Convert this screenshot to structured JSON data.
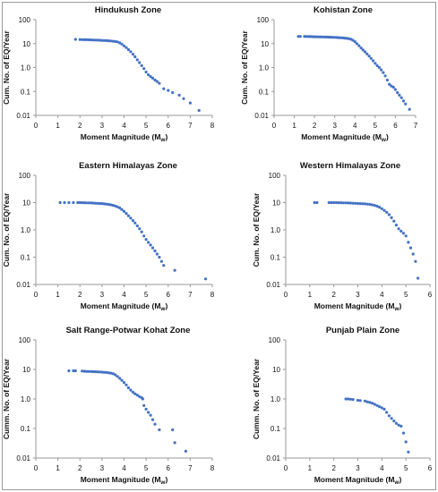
{
  "chart_data": [
    {
      "type": "scatter",
      "title": "Hindukush Zone",
      "xlabel": "Moment Magnitude (M",
      "xlabel_sub": "w",
      "xlabel_end": ")",
      "ylabel": "Cum. No. of EQ/Year",
      "xlim": [
        0,
        8
      ],
      "x_ticks": [
        "0",
        "1",
        "2",
        "3",
        "4",
        "5",
        "6",
        "7",
        "8"
      ],
      "y_log": true,
      "ylim": [
        0.01,
        100
      ],
      "y_ticks": [
        "0.01",
        "0.1",
        "1.0",
        "10",
        "100"
      ],
      "points": [
        [
          1.8,
          15
        ],
        [
          2.0,
          14.8
        ],
        [
          2.1,
          14.7
        ],
        [
          2.2,
          14.6
        ],
        [
          2.3,
          14.5
        ],
        [
          2.4,
          14.4
        ],
        [
          2.5,
          14.3
        ],
        [
          2.6,
          14.2
        ],
        [
          2.7,
          14
        ],
        [
          2.8,
          13.9
        ],
        [
          2.9,
          13.8
        ],
        [
          3.0,
          13.6
        ],
        [
          3.1,
          13.5
        ],
        [
          3.2,
          13.3
        ],
        [
          3.3,
          13.1
        ],
        [
          3.4,
          12.9
        ],
        [
          3.5,
          12.6
        ],
        [
          3.6,
          12.2
        ],
        [
          3.7,
          11.8
        ],
        [
          3.8,
          10.8
        ],
        [
          3.9,
          9.5
        ],
        [
          4.0,
          8.0
        ],
        [
          4.1,
          6.8
        ],
        [
          4.2,
          5.6
        ],
        [
          4.3,
          4.6
        ],
        [
          4.4,
          3.6
        ],
        [
          4.5,
          2.8
        ],
        [
          4.6,
          2.1
        ],
        [
          4.7,
          1.6
        ],
        [
          4.8,
          1.2
        ],
        [
          4.9,
          0.9
        ],
        [
          5.0,
          0.65
        ],
        [
          5.1,
          0.5
        ],
        [
          5.2,
          0.42
        ],
        [
          5.3,
          0.36
        ],
        [
          5.4,
          0.3
        ],
        [
          5.5,
          0.26
        ],
        [
          5.6,
          0.22
        ],
        [
          5.8,
          0.13
        ],
        [
          6.0,
          0.11
        ],
        [
          6.2,
          0.09
        ],
        [
          6.5,
          0.07
        ],
        [
          6.7,
          0.05
        ],
        [
          7.0,
          0.033
        ],
        [
          7.4,
          0.016
        ]
      ]
    },
    {
      "type": "scatter",
      "title": "Kohistan Zone",
      "xlabel": "Moment Magnitude (M",
      "xlabel_sub": "w",
      "xlabel_end": ")",
      "ylabel": "Cum. No. of EQ/Year",
      "xlim": [
        0,
        7
      ],
      "x_ticks": [
        "0",
        "1",
        "2",
        "3",
        "4",
        "5",
        "6",
        "7"
      ],
      "y_log": true,
      "ylim": [
        0.01,
        100
      ],
      "y_ticks": [
        "0.01",
        "0.1",
        "1.0",
        "10",
        "100"
      ],
      "points": [
        [
          1.2,
          20
        ],
        [
          1.3,
          20
        ],
        [
          1.5,
          20
        ],
        [
          1.6,
          19.8
        ],
        [
          1.7,
          19.7
        ],
        [
          1.8,
          19.6
        ],
        [
          1.9,
          19.5
        ],
        [
          2.0,
          19.4
        ],
        [
          2.1,
          19.3
        ],
        [
          2.2,
          19.2
        ],
        [
          2.3,
          19.1
        ],
        [
          2.4,
          19
        ],
        [
          2.5,
          18.9
        ],
        [
          2.6,
          18.8
        ],
        [
          2.7,
          18.7
        ],
        [
          2.8,
          18.5
        ],
        [
          2.9,
          18.4
        ],
        [
          3.0,
          18.2
        ],
        [
          3.1,
          18
        ],
        [
          3.2,
          17.8
        ],
        [
          3.3,
          17.6
        ],
        [
          3.4,
          17.3
        ],
        [
          3.5,
          17
        ],
        [
          3.6,
          16.6
        ],
        [
          3.7,
          16.1
        ],
        [
          3.8,
          15.2
        ],
        [
          3.9,
          13.8
        ],
        [
          4.0,
          12
        ],
        [
          4.1,
          10
        ],
        [
          4.2,
          8.2
        ],
        [
          4.3,
          6.6
        ],
        [
          4.4,
          5.4
        ],
        [
          4.5,
          4.5
        ],
        [
          4.6,
          3.7
        ],
        [
          4.7,
          3.0
        ],
        [
          4.8,
          2.4
        ],
        [
          4.9,
          1.9
        ],
        [
          5.0,
          1.5
        ],
        [
          5.1,
          1.2
        ],
        [
          5.2,
          1.0
        ],
        [
          5.3,
          0.8
        ],
        [
          5.4,
          0.62
        ],
        [
          5.5,
          0.45
        ],
        [
          5.6,
          0.3
        ],
        [
          5.7,
          0.2
        ],
        [
          5.8,
          0.17
        ],
        [
          5.9,
          0.15
        ],
        [
          6.0,
          0.12
        ],
        [
          6.1,
          0.09
        ],
        [
          6.2,
          0.07
        ],
        [
          6.3,
          0.055
        ],
        [
          6.4,
          0.04
        ],
        [
          6.5,
          0.03
        ],
        [
          6.7,
          0.018
        ]
      ]
    },
    {
      "type": "scatter",
      "title": "Eastern Himalayas Zone",
      "xlabel": "Moment Magnitude (M",
      "xlabel_sub": "w",
      "xlabel_end": ")",
      "ylabel": "Cum. No. of EQ/Year",
      "xlim": [
        0,
        8
      ],
      "x_ticks": [
        "0",
        "1",
        "2",
        "3",
        "4",
        "5",
        "6",
        "7",
        "8"
      ],
      "y_log": true,
      "ylim": [
        0.01,
        100
      ],
      "y_ticks": [
        "0.01",
        "0.1",
        "1.0",
        "10",
        "100"
      ],
      "points": [
        [
          1.1,
          10
        ],
        [
          1.3,
          10
        ],
        [
          1.5,
          10
        ],
        [
          1.7,
          10
        ],
        [
          1.9,
          10
        ],
        [
          2.0,
          10
        ],
        [
          2.1,
          9.9
        ],
        [
          2.2,
          9.9
        ],
        [
          2.3,
          9.8
        ],
        [
          2.4,
          9.8
        ],
        [
          2.5,
          9.7
        ],
        [
          2.6,
          9.6
        ],
        [
          2.7,
          9.5
        ],
        [
          2.8,
          9.4
        ],
        [
          2.9,
          9.3
        ],
        [
          3.0,
          9.2
        ],
        [
          3.1,
          9.0
        ],
        [
          3.2,
          8.8
        ],
        [
          3.3,
          8.6
        ],
        [
          3.4,
          8.3
        ],
        [
          3.5,
          8.0
        ],
        [
          3.6,
          7.5
        ],
        [
          3.7,
          7.0
        ],
        [
          3.8,
          6.4
        ],
        [
          3.9,
          5.6
        ],
        [
          4.0,
          4.8
        ],
        [
          4.1,
          4.0
        ],
        [
          4.2,
          3.3
        ],
        [
          4.3,
          2.7
        ],
        [
          4.4,
          2.2
        ],
        [
          4.5,
          1.8
        ],
        [
          4.6,
          1.4
        ],
        [
          4.7,
          1.1
        ],
        [
          4.8,
          0.85
        ],
        [
          4.9,
          0.6
        ],
        [
          5.0,
          0.45
        ],
        [
          5.1,
          0.35
        ],
        [
          5.2,
          0.28
        ],
        [
          5.3,
          0.22
        ],
        [
          5.4,
          0.17
        ],
        [
          5.5,
          0.13
        ],
        [
          5.6,
          0.1
        ],
        [
          5.7,
          0.07
        ],
        [
          5.8,
          0.05
        ],
        [
          6.3,
          0.033
        ],
        [
          7.7,
          0.016
        ]
      ]
    },
    {
      "type": "scatter",
      "title": "Western Himalayas Zone",
      "xlabel": "Moment Magnitude (M",
      "xlabel_sub": "w",
      "xlabel_end": ")",
      "ylabel": "Cum. No. of EQ/Year",
      "xlim": [
        0,
        6
      ],
      "x_ticks": [
        "0",
        "1",
        "2",
        "3",
        "4",
        "5",
        "6"
      ],
      "y_log": true,
      "ylim": [
        0.01,
        100
      ],
      "y_ticks": [
        "0.01",
        "0.1",
        "1.0",
        "10",
        "100"
      ],
      "points": [
        [
          1.2,
          10
        ],
        [
          1.3,
          10
        ],
        [
          1.8,
          10
        ],
        [
          1.9,
          10
        ],
        [
          2.0,
          10
        ],
        [
          2.1,
          10
        ],
        [
          2.2,
          9.9
        ],
        [
          2.3,
          9.9
        ],
        [
          2.4,
          9.8
        ],
        [
          2.5,
          9.8
        ],
        [
          2.6,
          9.7
        ],
        [
          2.7,
          9.6
        ],
        [
          2.8,
          9.5
        ],
        [
          2.9,
          9.4
        ],
        [
          3.0,
          9.3
        ],
        [
          3.1,
          9.2
        ],
        [
          3.2,
          9.1
        ],
        [
          3.3,
          9.0
        ],
        [
          3.4,
          8.8
        ],
        [
          3.5,
          8.6
        ],
        [
          3.6,
          8.3
        ],
        [
          3.7,
          7.9
        ],
        [
          3.8,
          7.4
        ],
        [
          3.9,
          6.8
        ],
        [
          4.0,
          6.0
        ],
        [
          4.1,
          5.2
        ],
        [
          4.2,
          4.4
        ],
        [
          4.3,
          3.6
        ],
        [
          4.4,
          2.8
        ],
        [
          4.5,
          2.1
        ],
        [
          4.6,
          1.5
        ],
        [
          4.7,
          1.1
        ],
        [
          4.8,
          0.9
        ],
        [
          4.9,
          0.75
        ],
        [
          5.0,
          0.6
        ],
        [
          5.1,
          0.35
        ],
        [
          5.2,
          0.22
        ],
        [
          5.3,
          0.13
        ],
        [
          5.4,
          0.07
        ],
        [
          5.5,
          0.017
        ]
      ]
    },
    {
      "type": "scatter",
      "title": "Salt Range-Potwar Kohat Zone",
      "xlabel": "Moment Magnitude (M",
      "xlabel_sub": "w",
      "xlabel_end": ")",
      "ylabel": "Cumm. No. of EQ/Year",
      "xlim": [
        0,
        8
      ],
      "x_ticks": [
        "0",
        "1",
        "2",
        "3",
        "4",
        "5",
        "6",
        "7",
        "8"
      ],
      "y_log": true,
      "ylim": [
        0.01,
        100
      ],
      "y_ticks": [
        "0.01",
        "0.1",
        "1.0",
        "10",
        "100"
      ],
      "points": [
        [
          1.5,
          9
        ],
        [
          1.7,
          9
        ],
        [
          1.8,
          9
        ],
        [
          2.1,
          8.8
        ],
        [
          2.2,
          8.7
        ],
        [
          2.3,
          8.6
        ],
        [
          2.4,
          8.5
        ],
        [
          2.5,
          8.5
        ],
        [
          2.6,
          8.4
        ],
        [
          2.7,
          8.4
        ],
        [
          2.8,
          8.3
        ],
        [
          2.9,
          8.2
        ],
        [
          3.0,
          8.1
        ],
        [
          3.1,
          8.0
        ],
        [
          3.2,
          7.9
        ],
        [
          3.3,
          7.7
        ],
        [
          3.4,
          7.5
        ],
        [
          3.5,
          7.2
        ],
        [
          3.6,
          6.6
        ],
        [
          3.7,
          5.8
        ],
        [
          3.8,
          5.0
        ],
        [
          3.9,
          4.3
        ],
        [
          4.0,
          3.6
        ],
        [
          4.1,
          3.0
        ],
        [
          4.2,
          2.4
        ],
        [
          4.3,
          2.0
        ],
        [
          4.4,
          1.7
        ],
        [
          4.5,
          1.5
        ],
        [
          4.6,
          1.35
        ],
        [
          4.7,
          1.2
        ],
        [
          4.8,
          1.1
        ],
        [
          4.85,
          1.0
        ],
        [
          4.9,
          0.6
        ],
        [
          5.0,
          0.45
        ],
        [
          5.1,
          0.35
        ],
        [
          5.2,
          0.28
        ],
        [
          5.3,
          0.2
        ],
        [
          5.4,
          0.14
        ],
        [
          5.6,
          0.09
        ],
        [
          6.2,
          0.09
        ],
        [
          6.3,
          0.033
        ],
        [
          6.8,
          0.017
        ]
      ]
    },
    {
      "type": "scatter",
      "title": "Punjab Plain Zone",
      "xlabel": "Moment Magnitude (M",
      "xlabel_sub": "w",
      "xlabel_end": ")",
      "ylabel": "Cumm. No. of EQ/Year",
      "xlim": [
        0,
        6
      ],
      "x_ticks": [
        "0",
        "1",
        "2",
        "3",
        "4",
        "5",
        "6"
      ],
      "y_log": true,
      "ylim": [
        0.01,
        100
      ],
      "y_ticks": [
        "0.01",
        "0.1",
        "1.0",
        "10",
        "100"
      ],
      "points": [
        [
          2.5,
          1.0
        ],
        [
          2.6,
          1.0
        ],
        [
          2.7,
          0.98
        ],
        [
          2.8,
          0.96
        ],
        [
          3.0,
          0.9
        ],
        [
          3.1,
          0.88
        ],
        [
          3.3,
          0.85
        ],
        [
          3.4,
          0.8
        ],
        [
          3.5,
          0.76
        ],
        [
          3.6,
          0.72
        ],
        [
          3.7,
          0.66
        ],
        [
          3.8,
          0.6
        ],
        [
          3.9,
          0.55
        ],
        [
          4.0,
          0.5
        ],
        [
          4.1,
          0.45
        ],
        [
          4.2,
          0.35
        ],
        [
          4.3,
          0.27
        ],
        [
          4.4,
          0.22
        ],
        [
          4.5,
          0.18
        ],
        [
          4.6,
          0.15
        ],
        [
          4.7,
          0.13
        ],
        [
          4.8,
          0.12
        ],
        [
          4.9,
          0.07
        ],
        [
          5.0,
          0.035
        ],
        [
          5.1,
          0.016
        ]
      ]
    }
  ]
}
